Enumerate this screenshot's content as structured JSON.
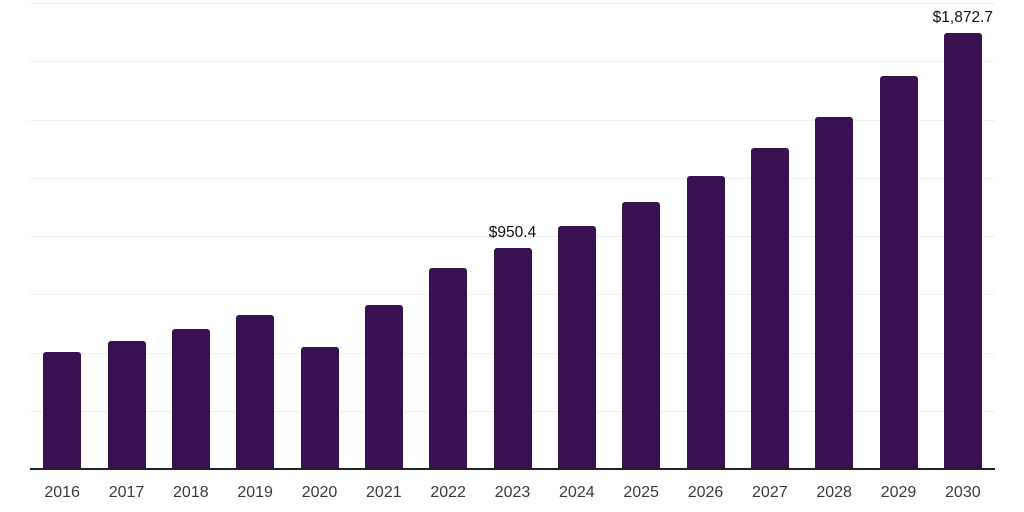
{
  "chart_data": {
    "type": "bar",
    "title": "",
    "xlabel": "",
    "ylabel": "",
    "categories": [
      "2016",
      "2017",
      "2018",
      "2019",
      "2020",
      "2021",
      "2022",
      "2023",
      "2024",
      "2025",
      "2026",
      "2027",
      "2028",
      "2029",
      "2030"
    ],
    "values": [
      503,
      551,
      600,
      661,
      525,
      704,
      864,
      950.4,
      1044,
      1145,
      1258,
      1378,
      1511,
      1687,
      1872.7
    ],
    "data_labels": [
      {
        "category": "2023",
        "text": "$950.4"
      },
      {
        "category": "2030",
        "text": "$1,872.7"
      }
    ],
    "ylim": [
      0,
      2000
    ],
    "gridline_step": 250,
    "grid": true,
    "legend": false,
    "y_axis_ticks_visible": false
  },
  "style": {
    "background": "#ffffff",
    "bar_color": "#371150",
    "gridline_color": "#f1f1f1",
    "axis_line_color": "#222222",
    "tick_label_color": "#3a3a3a",
    "data_label_color": "#111111"
  }
}
